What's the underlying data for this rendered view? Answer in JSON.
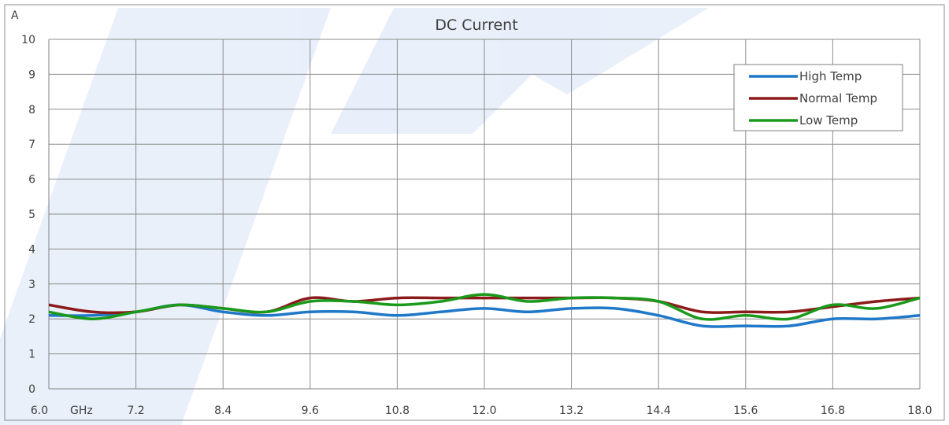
{
  "chart_data": {
    "type": "line",
    "title": "DC Current",
    "ylabel": "A",
    "x_unit_label": "GHz",
    "xlim": [
      6.0,
      18.0
    ],
    "ylim": [
      0,
      10
    ],
    "x_ticks": [
      "6.0",
      "7.2",
      "8.4",
      "9.6",
      "10.8",
      "12.0",
      "13.2",
      "14.4",
      "15.6",
      "16.8",
      "18.0"
    ],
    "y_ticks": [
      "0",
      "1",
      "2",
      "3",
      "4",
      "5",
      "6",
      "7",
      "8",
      "9",
      "10"
    ],
    "grid": true,
    "legend_position": "top-right",
    "series": [
      {
        "name": "High Temp",
        "color": "#1f78c8",
        "x": [
          6.0,
          6.6,
          7.2,
          7.8,
          8.4,
          9.0,
          9.6,
          10.2,
          10.8,
          11.4,
          12.0,
          12.6,
          13.2,
          13.8,
          14.4,
          15.0,
          15.6,
          16.2,
          16.8,
          17.4,
          18.0
        ],
        "y": [
          2.1,
          2.1,
          2.2,
          2.4,
          2.2,
          2.1,
          2.2,
          2.2,
          2.1,
          2.2,
          2.3,
          2.2,
          2.3,
          2.3,
          2.1,
          1.8,
          1.8,
          1.8,
          2.0,
          2.0,
          2.1
        ]
      },
      {
        "name": "Normal Temp",
        "color": "#8b1a1a",
        "x": [
          6.0,
          6.6,
          7.2,
          7.8,
          8.4,
          9.0,
          9.6,
          10.2,
          10.8,
          11.4,
          12.0,
          12.6,
          13.2,
          13.8,
          14.4,
          15.0,
          15.6,
          16.2,
          16.8,
          17.4,
          18.0
        ],
        "y": [
          2.4,
          2.2,
          2.2,
          2.4,
          2.3,
          2.2,
          2.6,
          2.5,
          2.6,
          2.6,
          2.6,
          2.6,
          2.6,
          2.6,
          2.5,
          2.2,
          2.2,
          2.2,
          2.35,
          2.5,
          2.6
        ]
      },
      {
        "name": "Low Temp",
        "color": "#1a9a1a",
        "x": [
          6.0,
          6.6,
          7.2,
          7.8,
          8.4,
          9.0,
          9.6,
          10.2,
          10.8,
          11.4,
          12.0,
          12.6,
          13.2,
          13.8,
          14.4,
          15.0,
          15.6,
          16.2,
          16.8,
          17.4,
          18.0
        ],
        "y": [
          2.2,
          2.0,
          2.2,
          2.4,
          2.3,
          2.2,
          2.5,
          2.5,
          2.4,
          2.5,
          2.7,
          2.5,
          2.6,
          2.6,
          2.5,
          2.0,
          2.1,
          2.0,
          2.4,
          2.3,
          2.6
        ]
      }
    ]
  }
}
